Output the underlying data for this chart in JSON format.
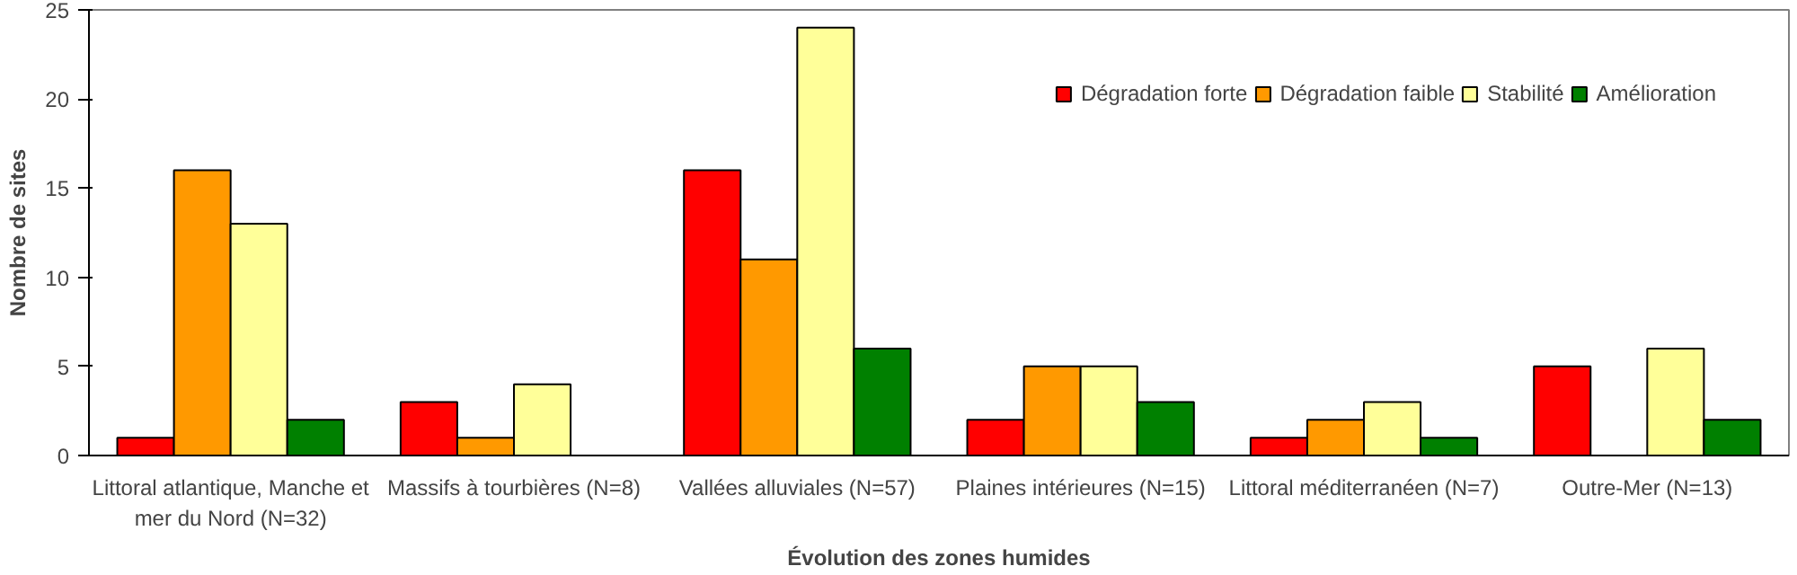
{
  "chart_data": {
    "type": "bar",
    "xlabel": "Évolution des zones humides",
    "ylabel": "Nombre de sites",
    "categories": [
      "Littoral atlantique, Manche et mer du Nord (N=32)",
      "Massifs à tourbières (N=8)",
      "Vallées alluviales (N=57)",
      "Plaines intérieures (N=15)",
      "Littoral méditerranéen (N=7)",
      "Outre-Mer (N=13)"
    ],
    "series": [
      {
        "name": "Dégradation forte",
        "color": "#ff0000",
        "values": [
          1,
          3,
          16,
          2,
          1,
          5
        ]
      },
      {
        "name": "Dégradation faible",
        "color": "#ff9900",
        "values": [
          16,
          1,
          11,
          5,
          2,
          null
        ]
      },
      {
        "name": "Stabilité",
        "color": "#ffff99",
        "values": [
          13,
          4,
          24,
          5,
          3,
          6
        ]
      },
      {
        "name": "Amélioration",
        "color": "#008000",
        "values": [
          2,
          null,
          6,
          3,
          1,
          2
        ]
      }
    ],
    "ylim": [
      0,
      25
    ],
    "yticks": [
      0,
      5,
      10,
      15,
      20,
      25
    ],
    "grid": false,
    "legend": "top right"
  }
}
